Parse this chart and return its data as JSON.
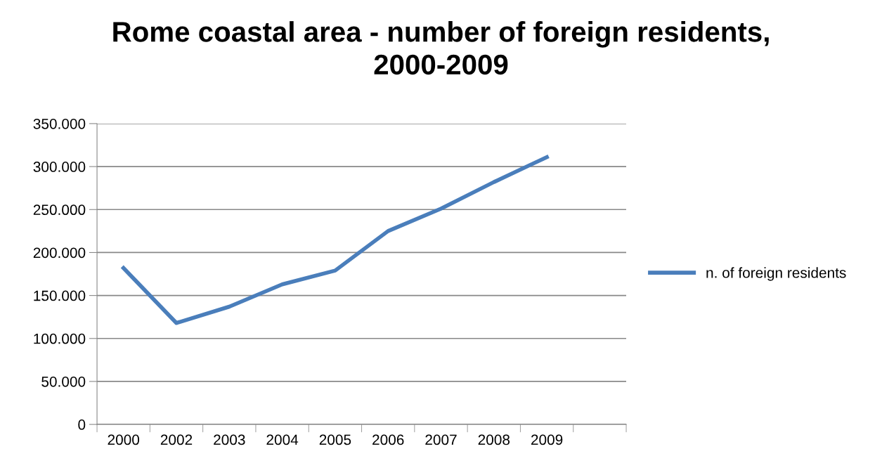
{
  "chart_data": {
    "type": "line",
    "title": "Rome coastal area - number of foreign residents,\n2000-2009",
    "categories": [
      "2000",
      "2002",
      "2003",
      "2004",
      "2005",
      "2006",
      "2007",
      "2008",
      "2009",
      null
    ],
    "series": [
      {
        "name": "n. of foreign residents",
        "color": "#4a7ebb",
        "values": [
          182000,
          118000,
          137000,
          163000,
          179000,
          225000,
          251000,
          282000,
          311000,
          null
        ]
      }
    ],
    "ylim": [
      0,
      350000
    ],
    "yticks": [
      0,
      {
        "value": 50000,
        "label": "50.000"
      },
      {
        "value": 100000,
        "label": "100.000"
      },
      {
        "value": 150000,
        "label": "150.000"
      },
      {
        "value": 200000,
        "label": "200.000"
      },
      {
        "value": 250000,
        "label": "250.000"
      },
      {
        "value": 300000,
        "label": "300.000"
      },
      {
        "value": 350000,
        "label": "350.000"
      }
    ],
    "grid": "y",
    "legend": "right",
    "marker": "none",
    "line_style": "solid"
  }
}
